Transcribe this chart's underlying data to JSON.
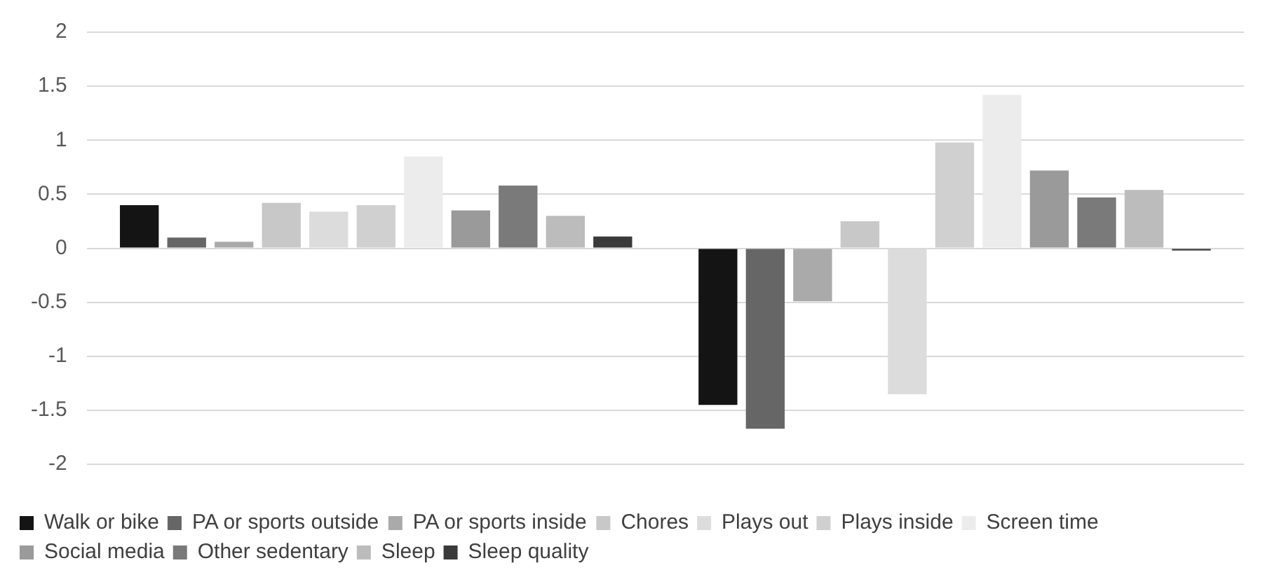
{
  "chart_data": {
    "type": "bar",
    "categories": [
      null,
      null
    ],
    "series": [
      {
        "name": "Walk or bike",
        "color": "#141414",
        "values": [
          0.4,
          -1.45
        ]
      },
      {
        "name": "PA or sports outside",
        "color": "#666666",
        "values": [
          0.1,
          -1.67
        ]
      },
      {
        "name": "PA or sports inside",
        "color": "#aaaaaa",
        "values": [
          0.06,
          -0.49
        ]
      },
      {
        "name": "Chores",
        "color": "#c8c8c8",
        "values": [
          0.42,
          0.25
        ]
      },
      {
        "name": "Plays out",
        "color": "#dcdcdc",
        "values": [
          0.34,
          -1.35
        ]
      },
      {
        "name": "Plays inside",
        "color": "#d0d0d0",
        "values": [
          0.4,
          0.98
        ]
      },
      {
        "name": "Screen time",
        "color": "#ececec",
        "values": [
          0.85,
          1.42
        ]
      },
      {
        "name": "Social media",
        "color": "#9a9a9a",
        "values": [
          0.35,
          0.72
        ]
      },
      {
        "name": "Other sedentary",
        "color": "#7a7a7a",
        "values": [
          0.58,
          0.47
        ]
      },
      {
        "name": "Sleep",
        "color": "#bcbcbc",
        "values": [
          0.3,
          0.54
        ]
      },
      {
        "name": "Sleep quality",
        "color": "#3a3a3a",
        "values": [
          0.11,
          -0.02
        ]
      }
    ],
    "ylim": [
      -2,
      2
    ],
    "yticks": [
      -2,
      -1.5,
      -1,
      -0.5,
      0,
      0.5,
      1,
      1.5,
      2
    ],
    "grid": "y",
    "legend": "bottom"
  }
}
